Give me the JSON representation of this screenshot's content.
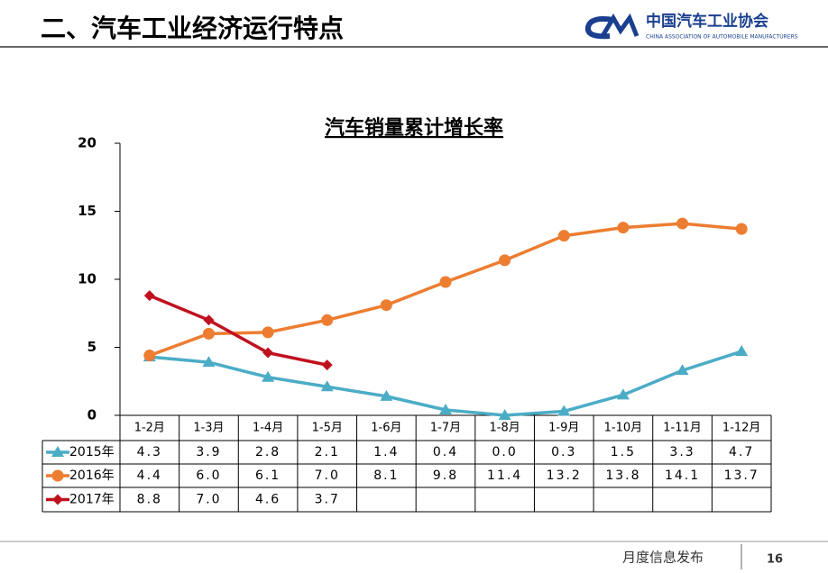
{
  "header": {
    "title": "二、汽车工业经济运行特点",
    "org": "中国汽车工业协会",
    "org_en": "CHINA ASSOCIATION OF AUTOMOBILE MANUFACTURERS"
  },
  "footer": {
    "label": "月度信息发布",
    "page": "16"
  },
  "chart_data": {
    "type": "line",
    "title": "汽车销量累计增长率",
    "categories": [
      "1-2月",
      "1-3月",
      "1-4月",
      "1-5月",
      "1-6月",
      "1-7月",
      "1-8月",
      "1-9月",
      "1-10月",
      "1-11月",
      "1-12月"
    ],
    "series": [
      {
        "name": "2015年",
        "color": "#4bacc6",
        "values": [
          4.3,
          3.9,
          2.8,
          2.1,
          1.4,
          0.4,
          0.0,
          0.3,
          1.5,
          3.3,
          4.7
        ],
        "value_labels": [
          "4.3",
          "3.9",
          "2.8",
          "2.1",
          "1.4",
          "0.4",
          "0.0",
          "0.3",
          "1.5",
          "3.3",
          "4.7"
        ]
      },
      {
        "name": "2016年",
        "color": "#ed7d31",
        "values": [
          4.4,
          6.0,
          6.1,
          7.0,
          8.1,
          9.8,
          11.4,
          13.2,
          13.8,
          14.1,
          13.7
        ],
        "value_labels": [
          "4.4",
          "6.0",
          "6.1",
          "7.0",
          "8.1",
          "9.8",
          "11.4",
          "13.2",
          "13.8",
          "14.1",
          "13.7"
        ]
      },
      {
        "name": "2017年",
        "color": "#c0111f",
        "values": [
          8.8,
          7.0,
          4.6,
          3.7,
          null,
          null,
          null,
          null,
          null,
          null,
          null
        ],
        "value_labels": [
          "8.8",
          "7.0",
          "4.6",
          "3.7",
          null,
          null,
          null,
          null,
          null,
          null,
          null
        ]
      }
    ],
    "ylim": [
      0,
      20
    ],
    "yticks": [
      0,
      5,
      10,
      15,
      20
    ],
    "grid": false
  }
}
